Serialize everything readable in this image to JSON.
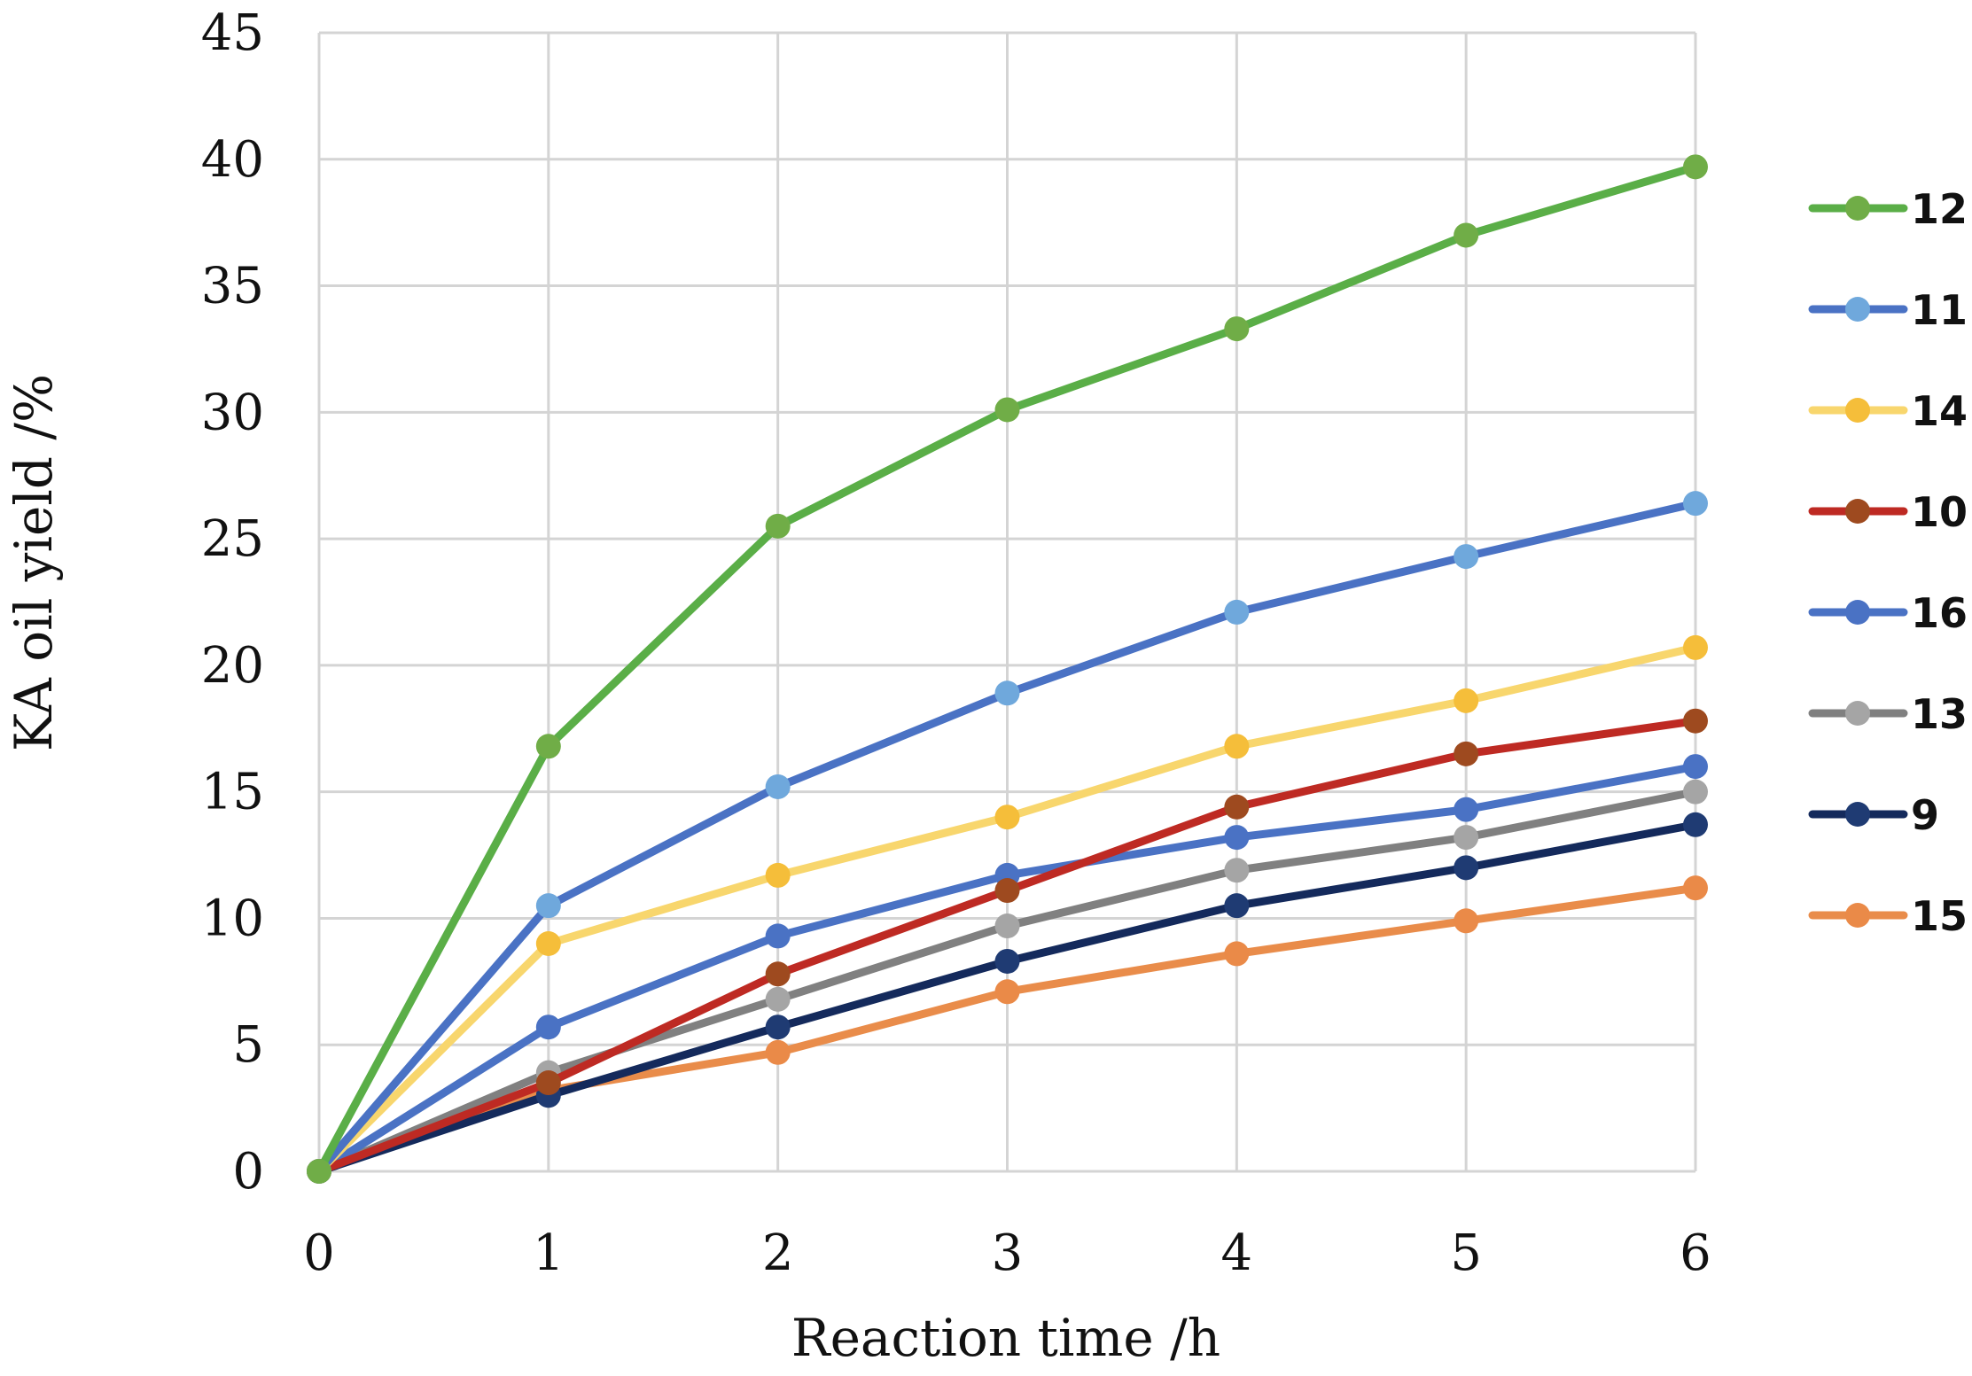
{
  "chart_data": {
    "type": "line",
    "title": "",
    "xlabel": "Reaction time /h",
    "ylabel": "KA oil yield /%",
    "x": [
      0,
      1,
      2,
      3,
      4,
      5,
      6
    ],
    "xlim": [
      0,
      6
    ],
    "ylim": [
      0,
      45
    ],
    "yticks": [
      0,
      5,
      10,
      15,
      20,
      25,
      30,
      35,
      40,
      45
    ],
    "xticks": [
      0,
      1,
      2,
      3,
      4,
      5,
      6
    ],
    "grid": true,
    "legend_position": "right",
    "series": [
      {
        "name": "12",
        "line_color": "#5aae47",
        "marker_color": "#70ad47",
        "values": [
          0,
          16.8,
          25.5,
          30.1,
          33.3,
          37.0,
          39.7
        ]
      },
      {
        "name": "11",
        "line_color": "#4a72c4",
        "marker_color": "#6fa8dc",
        "values": [
          0,
          10.5,
          15.2,
          18.9,
          22.1,
          24.3,
          26.4
        ]
      },
      {
        "name": "14",
        "line_color": "#f8d66d",
        "marker_color": "#f5be3a",
        "values": [
          0,
          9.0,
          11.7,
          14.0,
          16.8,
          18.6,
          20.7
        ]
      },
      {
        "name": "10",
        "line_color": "#be2a23",
        "marker_color": "#9e4a1f",
        "values": [
          0,
          3.5,
          7.8,
          11.1,
          14.4,
          16.5,
          17.8
        ]
      },
      {
        "name": "16",
        "line_color": "#4a72c4",
        "marker_color": "#4a72c4",
        "values": [
          0,
          5.7,
          9.3,
          11.7,
          13.2,
          14.3,
          16.0
        ]
      },
      {
        "name": "13",
        "line_color": "#808080",
        "marker_color": "#a5a5a5",
        "values": [
          0,
          3.9,
          6.8,
          9.7,
          11.9,
          13.2,
          15.0
        ]
      },
      {
        "name": "9",
        "line_color": "#142a5c",
        "marker_color": "#1f3b73",
        "values": [
          0,
          3.0,
          5.7,
          8.3,
          10.5,
          12.0,
          13.7
        ]
      },
      {
        "name": "15",
        "line_color": "#e98c4a",
        "marker_color": "#ea8a48",
        "values": [
          0,
          3.2,
          4.7,
          7.1,
          8.6,
          9.9,
          11.2
        ]
      }
    ]
  }
}
